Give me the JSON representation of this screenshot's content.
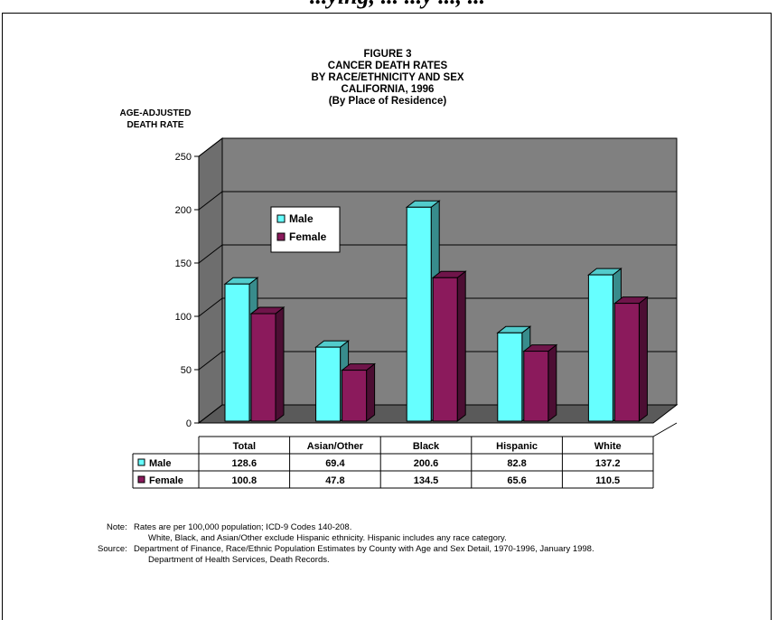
{
  "header_fragment": "...ying, ... ...y ..., ...",
  "chart_data": {
    "type": "bar",
    "title_lines": [
      "FIGURE 3",
      "CANCER DEATH RATES",
      "BY RACE/ETHNICITY AND SEX",
      "CALIFORNIA, 1996",
      "(By Place of Residence)"
    ],
    "ylabel_lines": [
      "AGE-ADJUSTED",
      "DEATH RATE"
    ],
    "categories": [
      "Total",
      "Asian/Other",
      "Black",
      "Hispanic",
      "White"
    ],
    "series": [
      {
        "name": "Male",
        "color": "#66ffff",
        "values": [
          128.6,
          69.4,
          200.6,
          82.8,
          137.2
        ],
        "labels": [
          "128.6",
          "69.4",
          "200.6",
          "82.8",
          "137.2"
        ]
      },
      {
        "name": "Female",
        "color": "#8b1a5c",
        "values": [
          100.8,
          47.8,
          134.5,
          65.6,
          110.5
        ],
        "labels": [
          "100.8",
          "47.8",
          "134.5",
          "65.6",
          "110.5"
        ]
      }
    ],
    "ylim": [
      0,
      250
    ],
    "yticks": [
      0,
      50,
      100,
      150,
      200,
      250
    ],
    "grid": true,
    "background_color": "#808080",
    "legend_position": "top-left inside plot",
    "data_table": true
  },
  "notes": {
    "note_label": "Note:",
    "note_line1": "Rates are per 100,000 population; ICD-9 Codes 140-208.",
    "note_line2": "White, Black, and Asian/Other exclude Hispanic ethnicity.  Hispanic includes any race category.",
    "source_label": "Source:",
    "source_line1": "Department of Finance, Race/Ethnic Population Estimates by County with Age and Sex Detail,  1970-1996, January 1998.",
    "source_line2": "Department of Health Services, Death Records."
  }
}
